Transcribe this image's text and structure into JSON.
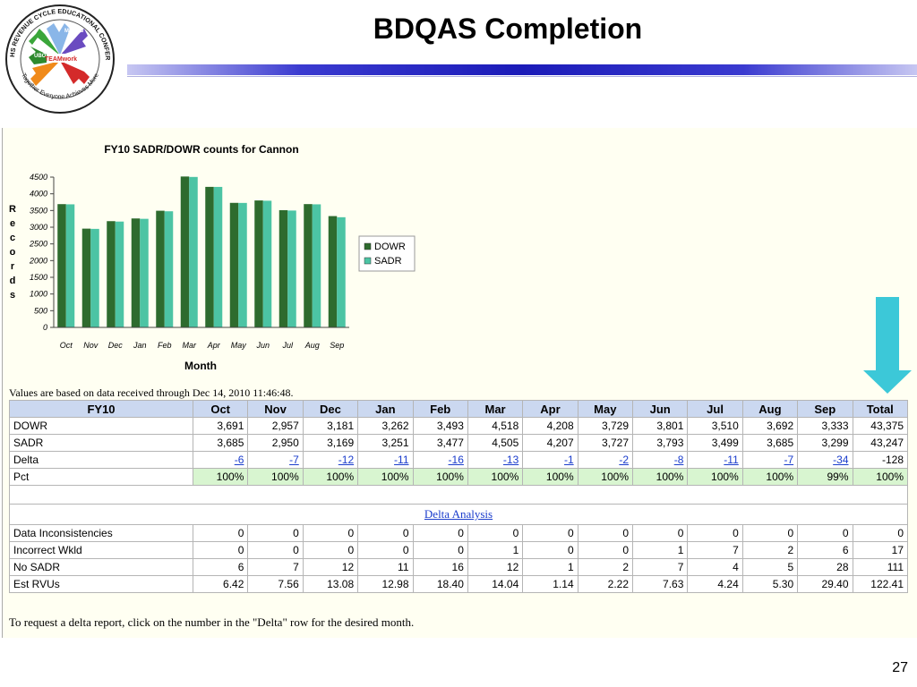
{
  "slide": {
    "title": "BDQAS Completion",
    "page_number": "27"
  },
  "logo": {
    "ring_top": "2011 MHS REVENUE CYCLE EDUCATIONAL CONFERENCE",
    "ring_bottom": "Together Everyone Achieves More",
    "center": "TEAMwork",
    "hand_labels": [
      "MEPRS",
      "UBO",
      "UBU",
      "DQ"
    ]
  },
  "chart_data": {
    "type": "bar",
    "title": "FY10 SADR/DOWR counts for Cannon",
    "xlabel": "Month",
    "ylabel": "Records",
    "categories": [
      "Oct",
      "Nov",
      "Dec",
      "Jan",
      "Feb",
      "Mar",
      "Apr",
      "May",
      "Jun",
      "Jul",
      "Aug",
      "Sep"
    ],
    "ylim": [
      0,
      4500
    ],
    "yticks": [
      "0",
      "500",
      "1000",
      "1500",
      "2000",
      "2500",
      "3000",
      "3500",
      "4000",
      "4500"
    ],
    "legend_position": "right",
    "series": [
      {
        "name": "DOWR",
        "color": "#2e6b2e",
        "values": [
          3691,
          2957,
          3181,
          3262,
          3493,
          4518,
          4208,
          3729,
          3801,
          3510,
          3692,
          3333
        ]
      },
      {
        "name": "SADR",
        "color": "#4cc4a4",
        "values": [
          3685,
          2950,
          3169,
          3251,
          3477,
          4505,
          4207,
          3727,
          3793,
          3499,
          3685,
          3299
        ]
      }
    ]
  },
  "report": {
    "values_note": "Values are based on data received through Dec 14, 2010 11:46:48.",
    "footer_note": "To request a delta report, click on the number in the \"Delta\" row for the desired month.",
    "section_link": "Delta Analysis",
    "headers": [
      "FY10",
      "Oct",
      "Nov",
      "Dec",
      "Jan",
      "Feb",
      "Mar",
      "Apr",
      "May",
      "Jun",
      "Jul",
      "Aug",
      "Sep",
      "Total"
    ],
    "top_rows": [
      {
        "label": "DOWR",
        "cells": [
          "3,691",
          "2,957",
          "3,181",
          "3,262",
          "3,493",
          "4,518",
          "4,208",
          "3,729",
          "3,801",
          "3,510",
          "3,692",
          "3,333",
          "43,375"
        ]
      },
      {
        "label": "SADR",
        "cells": [
          "3,685",
          "2,950",
          "3,169",
          "3,251",
          "3,477",
          "4,505",
          "4,207",
          "3,727",
          "3,793",
          "3,499",
          "3,685",
          "3,299",
          "43,247"
        ]
      },
      {
        "label": "Delta",
        "cells": [
          "-6",
          "-7",
          "-12",
          "-11",
          "-16",
          "-13",
          "-1",
          "-2",
          "-8",
          "-11",
          "-7",
          "-34",
          "-128"
        ]
      },
      {
        "label": "Pct",
        "cells": [
          "100%",
          "100%",
          "100%",
          "100%",
          "100%",
          "100%",
          "100%",
          "100%",
          "100%",
          "100%",
          "100%",
          "99%",
          "100%"
        ]
      }
    ],
    "bottom_rows": [
      {
        "label": "Data Inconsistencies",
        "cells": [
          "0",
          "0",
          "0",
          "0",
          "0",
          "0",
          "0",
          "0",
          "0",
          "0",
          "0",
          "0",
          "0"
        ]
      },
      {
        "label": "Incorrect Wkld",
        "cells": [
          "0",
          "0",
          "0",
          "0",
          "0",
          "1",
          "0",
          "0",
          "1",
          "7",
          "2",
          "6",
          "17"
        ]
      },
      {
        "label": "No SADR",
        "cells": [
          "6",
          "7",
          "12",
          "11",
          "16",
          "12",
          "1",
          "2",
          "7",
          "4",
          "5",
          "28",
          "111"
        ]
      },
      {
        "label": "Est RVUs",
        "cells": [
          "6.42",
          "7.56",
          "13.08",
          "12.98",
          "18.40",
          "14.04",
          "1.14",
          "2.22",
          "7.63",
          "4.24",
          "5.30",
          "29.40",
          "122.41"
        ]
      }
    ]
  },
  "colors": {
    "header_bg": "#cbd8f0",
    "pct_bg": "#d8f5d0",
    "panel_bg": "#fffff2",
    "arrow": "#3cc8d8",
    "link": "#1a3ccc"
  },
  "icons": {
    "arrow": "down-arrow-icon"
  }
}
